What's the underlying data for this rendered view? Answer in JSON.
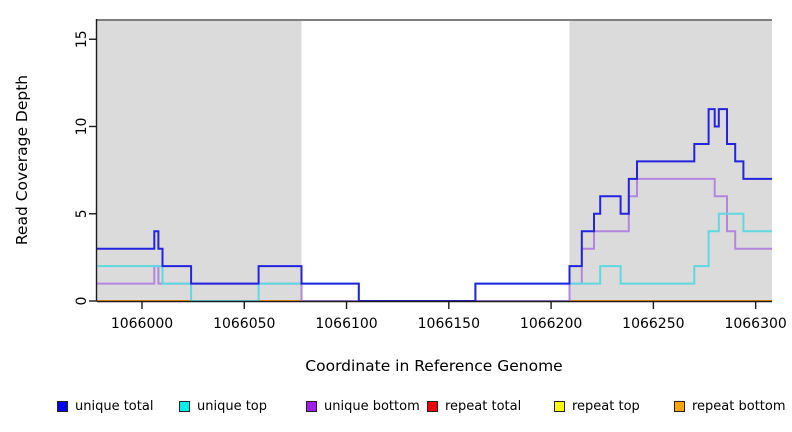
{
  "chart_data": {
    "type": "line",
    "subtype": "step-coverage-plot",
    "title": "",
    "xlabel": "Coordinate in Reference Genome",
    "ylabel": "Read Coverage Depth",
    "xlim": [
      1065978,
      1066308
    ],
    "ylim": [
      0,
      16.2
    ],
    "grid": false,
    "x_ticks": [
      1066000,
      1066050,
      1066100,
      1066150,
      1066200,
      1066250,
      1066300
    ],
    "y_ticks": [
      0,
      5,
      10,
      15
    ],
    "shaded_regions": [
      {
        "from": 1065978,
        "to": 1066078,
        "color": "#dbdbdb"
      },
      {
        "from": 1066209,
        "to": 1066308,
        "color": "#dbdbdb"
      }
    ],
    "series": [
      {
        "name": "repeat total",
        "color": "#dc3c3c",
        "points": [
          [
            1065978,
            0
          ]
        ]
      },
      {
        "name": "repeat top",
        "color": "#eee800",
        "points": [
          [
            1065978,
            0
          ]
        ]
      },
      {
        "name": "repeat bottom",
        "color": "#ff9c14",
        "points": [
          [
            1065978,
            0
          ]
        ]
      },
      {
        "name": "unique bottom",
        "color": "#b286de",
        "points": [
          [
            1065978,
            1
          ],
          [
            1066006,
            2
          ],
          [
            1066008,
            1
          ],
          [
            1066078,
            0
          ],
          [
            1066209,
            1
          ],
          [
            1066215,
            3
          ],
          [
            1066221,
            4
          ],
          [
            1066238,
            6
          ],
          [
            1066242,
            7
          ],
          [
            1066280,
            6
          ],
          [
            1066286,
            4
          ],
          [
            1066290,
            3
          ]
        ]
      },
      {
        "name": "unique top",
        "color": "#5fd8e0",
        "points": [
          [
            1065978,
            2
          ],
          [
            1066010,
            1
          ],
          [
            1066024,
            0
          ],
          [
            1066057,
            1
          ],
          [
            1066106,
            0
          ],
          [
            1066163,
            1
          ],
          [
            1066224,
            2
          ],
          [
            1066234,
            1
          ],
          [
            1066270,
            2
          ],
          [
            1066277,
            4
          ],
          [
            1066282,
            5
          ],
          [
            1066294,
            4
          ]
        ]
      },
      {
        "name": "unique total",
        "color": "#2424de",
        "points": [
          [
            1065978,
            3
          ],
          [
            1066006,
            4
          ],
          [
            1066008,
            3
          ],
          [
            1066010,
            2
          ],
          [
            1066024,
            1
          ],
          [
            1066057,
            2
          ],
          [
            1066078,
            1
          ],
          [
            1066106,
            0
          ],
          [
            1066163,
            1
          ],
          [
            1066209,
            2
          ],
          [
            1066215,
            4
          ],
          [
            1066221,
            5
          ],
          [
            1066224,
            6
          ],
          [
            1066234,
            5
          ],
          [
            1066238,
            7
          ],
          [
            1066242,
            8
          ],
          [
            1066270,
            9
          ],
          [
            1066277,
            11
          ],
          [
            1066280,
            10
          ],
          [
            1066282,
            11
          ],
          [
            1066286,
            9
          ],
          [
            1066290,
            8
          ],
          [
            1066294,
            7
          ]
        ]
      }
    ],
    "legend": [
      {
        "label": "unique total",
        "color": "#0000ee"
      },
      {
        "label": "unique top",
        "color": "#00eeee"
      },
      {
        "label": "unique bottom",
        "color": "#a020f0"
      },
      {
        "label": "repeat total",
        "color": "#ee0000"
      },
      {
        "label": "repeat top",
        "color": "#ffff00"
      },
      {
        "label": "repeat bottom",
        "color": "#ffa500"
      }
    ],
    "legend_position": "bottom"
  }
}
